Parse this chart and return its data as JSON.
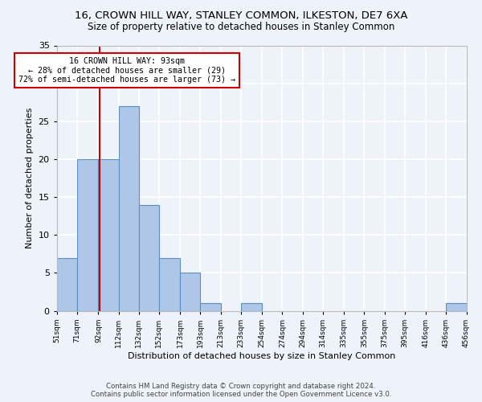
{
  "title": "16, CROWN HILL WAY, STANLEY COMMON, ILKESTON, DE7 6XA",
  "subtitle": "Size of property relative to detached houses in Stanley Common",
  "xlabel": "Distribution of detached houses by size in Stanley Common",
  "ylabel": "Number of detached properties",
  "bin_edges": [
    51,
    71,
    92,
    112,
    132,
    152,
    173,
    193,
    213,
    233,
    254,
    274,
    294,
    314,
    335,
    355,
    375,
    395,
    416,
    436,
    456
  ],
  "bar_heights": [
    7,
    20,
    20,
    27,
    14,
    7,
    5,
    1,
    0,
    1,
    0,
    0,
    0,
    0,
    0,
    0,
    0,
    0,
    0,
    1
  ],
  "bar_color": "#aec6e8",
  "bar_edge_color": "#5a8fc2",
  "property_value": 93,
  "vline_color": "#cc0000",
  "annotation_text": "16 CROWN HILL WAY: 93sqm\n← 28% of detached houses are smaller (29)\n72% of semi-detached houses are larger (73) →",
  "annotation_box_color": "#ffffff",
  "annotation_box_edge_color": "#cc0000",
  "footer_line1": "Contains HM Land Registry data © Crown copyright and database right 2024.",
  "footer_line2": "Contains public sector information licensed under the Open Government Licence v3.0.",
  "tick_labels": [
    "51sqm",
    "71sqm",
    "92sqm",
    "112sqm",
    "132sqm",
    "152sqm",
    "173sqm",
    "193sqm",
    "213sqm",
    "233sqm",
    "254sqm",
    "274sqm",
    "294sqm",
    "314sqm",
    "335sqm",
    "355sqm",
    "375sqm",
    "395sqm",
    "416sqm",
    "436sqm",
    "456sqm"
  ],
  "ylim": [
    0,
    35
  ],
  "background_color": "#eef2f9",
  "grid_color": "#ffffff",
  "yticks": [
    0,
    5,
    10,
    15,
    20,
    25,
    30,
    35
  ]
}
